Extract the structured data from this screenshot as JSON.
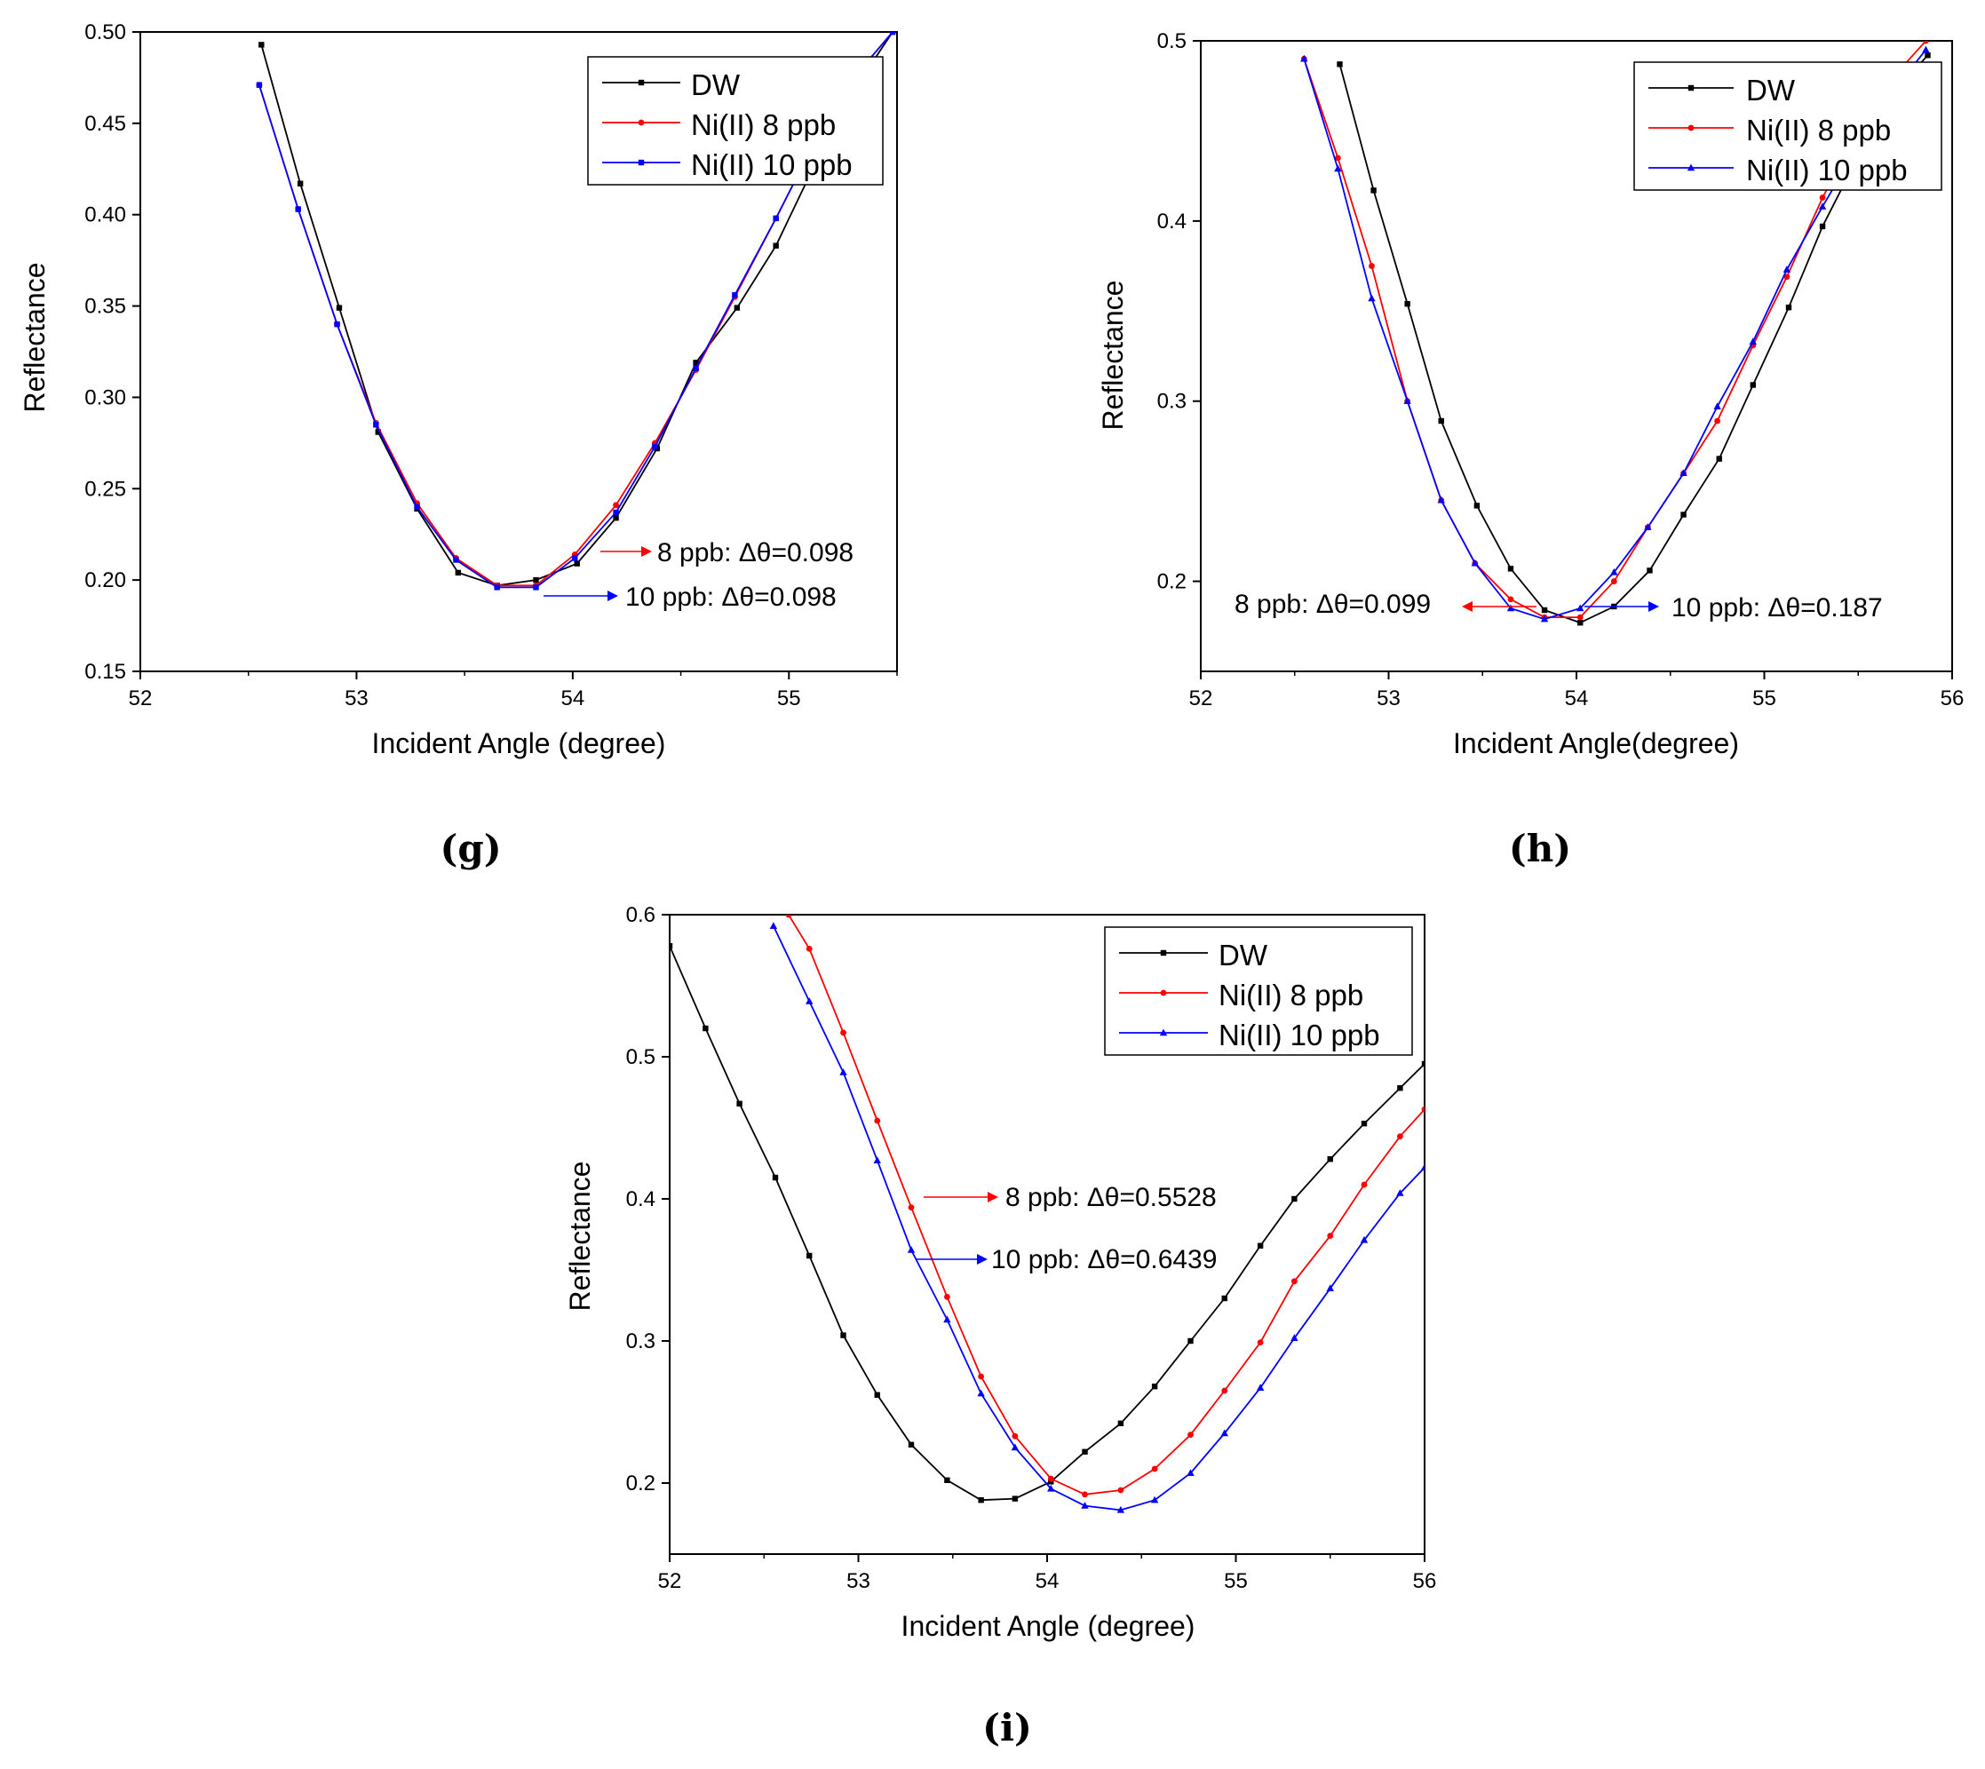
{
  "chart_data": [
    {
      "type": "line",
      "panel_label": "g",
      "xlabel": "Incident Angle (degree)",
      "ylabel": "Reflectance",
      "xlim": [
        52,
        55.5
      ],
      "ylim": [
        0.15,
        0.5
      ],
      "xticks": [
        "52",
        "53",
        "54",
        "55"
      ],
      "yticks": [
        "0.15",
        "0.20",
        "0.25",
        "0.30",
        "0.35",
        "0.40",
        "0.45",
        "0.50"
      ],
      "legend": [
        "DW",
        "Ni(II) 8 ppb",
        "Ni(II) 10 ppb"
      ],
      "series": [
        {
          "name": "DW",
          "color": "#000000",
          "marker": "square",
          "x": [
            52.56,
            52.74,
            52.92,
            53.1,
            53.28,
            53.47,
            53.65,
            53.83,
            54.02,
            54.2,
            54.39,
            54.57,
            54.76,
            54.94,
            55.13,
            55.31,
            55.48
          ],
          "y": [
            0.493,
            0.417,
            0.349,
            0.281,
            0.239,
            0.204,
            0.197,
            0.2,
            0.209,
            0.234,
            0.272,
            0.319,
            0.349,
            0.383,
            0.43,
            0.47,
            0.5
          ]
        },
        {
          "name": "Ni(II) 8 ppb",
          "color": "#ff0000",
          "marker": "circle",
          "x": [
            52.55,
            52.73,
            52.91,
            53.09,
            53.28,
            53.46,
            53.65,
            53.83,
            54.01,
            54.2,
            54.38,
            54.57,
            54.75,
            54.94,
            55.12,
            55.3,
            55.48
          ],
          "y": [
            0.471,
            0.403,
            0.34,
            0.286,
            0.242,
            0.212,
            0.197,
            0.197,
            0.214,
            0.241,
            0.275,
            0.315,
            0.355,
            0.398,
            0.44,
            0.475,
            0.5
          ]
        },
        {
          "name": "Ni(II) 10 ppb",
          "color": "#0000ff",
          "marker": "square",
          "x": [
            52.55,
            52.73,
            52.91,
            53.09,
            53.28,
            53.46,
            53.65,
            53.83,
            54.01,
            54.2,
            54.38,
            54.57,
            54.75,
            54.94,
            55.12,
            55.3,
            55.48
          ],
          "y": [
            0.471,
            0.403,
            0.34,
            0.285,
            0.24,
            0.211,
            0.196,
            0.196,
            0.212,
            0.237,
            0.273,
            0.316,
            0.356,
            0.398,
            0.44,
            0.475,
            0.5
          ]
        }
      ],
      "annotations": [
        {
          "text": "8 ppb: Δθ=0.098",
          "color": "#ff0000",
          "arrow": "right"
        },
        {
          "text": "10 ppb: Δθ=0.098",
          "color": "#0000ff",
          "arrow": "right"
        }
      ]
    },
    {
      "type": "line",
      "panel_label": "h",
      "xlabel": "Incident Angle(degree)",
      "ylabel": "Reflectance",
      "xlim": [
        52,
        56
      ],
      "ylim": [
        0.15,
        0.5
      ],
      "xticks": [
        "52",
        "53",
        "54",
        "55",
        "56"
      ],
      "yticks": [
        "0.2",
        "0.3",
        "0.4",
        "0.5"
      ],
      "legend": [
        "DW",
        "Ni(II) 8 ppb",
        "Ni(II) 10 ppb"
      ],
      "series": [
        {
          "name": "DW",
          "color": "#000000",
          "marker": "square",
          "x": [
            52.74,
            52.92,
            53.1,
            53.28,
            53.47,
            53.65,
            53.83,
            54.02,
            54.2,
            54.39,
            54.57,
            54.76,
            54.94,
            55.13,
            55.31,
            55.5,
            55.68,
            55.87
          ],
          "y": [
            0.487,
            0.417,
            0.354,
            0.289,
            0.242,
            0.207,
            0.184,
            0.177,
            0.186,
            0.206,
            0.237,
            0.268,
            0.309,
            0.352,
            0.397,
            0.436,
            0.47,
            0.492
          ]
        },
        {
          "name": "Ni(II) 8 ppb",
          "color": "#ff0000",
          "marker": "circle",
          "x": [
            52.55,
            52.73,
            52.91,
            53.1,
            53.28,
            53.46,
            53.65,
            53.83,
            54.02,
            54.2,
            54.38,
            54.57,
            54.75,
            54.94,
            55.12,
            55.31,
            55.49,
            55.67,
            55.86
          ],
          "y": [
            0.49,
            0.435,
            0.375,
            0.3,
            0.245,
            0.21,
            0.19,
            0.18,
            0.18,
            0.2,
            0.23,
            0.26,
            0.289,
            0.331,
            0.369,
            0.413,
            0.448,
            0.478,
            0.5
          ]
        },
        {
          "name": "Ni(II) 10 ppb",
          "color": "#0000ff",
          "marker": "triangle",
          "x": [
            52.55,
            52.73,
            52.91,
            53.1,
            53.28,
            53.46,
            53.65,
            53.83,
            54.02,
            54.2,
            54.38,
            54.57,
            54.75,
            54.94,
            55.12,
            55.31,
            55.49,
            55.67,
            55.86
          ],
          "y": [
            0.49,
            0.429,
            0.357,
            0.3,
            0.245,
            0.21,
            0.185,
            0.179,
            0.185,
            0.205,
            0.23,
            0.26,
            0.297,
            0.333,
            0.373,
            0.408,
            0.44,
            0.47,
            0.495
          ]
        }
      ],
      "annotations": [
        {
          "text": "8 ppb: Δθ=0.099",
          "color": "#ff0000",
          "arrow": "left"
        },
        {
          "text": "10 ppb: Δθ=0.187",
          "color": "#0000ff",
          "arrow": "right"
        }
      ]
    },
    {
      "type": "line",
      "panel_label": "i",
      "xlabel": "Incident Angle (degree)",
      "ylabel": "Reflectance",
      "xlim": [
        52,
        56
      ],
      "ylim": [
        0.15,
        0.6
      ],
      "xticks": [
        "52",
        "53",
        "54",
        "55",
        "56"
      ],
      "yticks": [
        "0.2",
        "0.3",
        "0.4",
        "0.5",
        "0.6"
      ],
      "legend": [
        "DW",
        "Ni(II) 8 ppb",
        "Ni(II) 10 ppb"
      ],
      "series": [
        {
          "name": "DW",
          "color": "#000000",
          "marker": "square",
          "x": [
            52.0,
            52.19,
            52.37,
            52.56,
            52.74,
            52.92,
            53.1,
            53.28,
            53.47,
            53.65,
            53.83,
            54.02,
            54.2,
            54.39,
            54.57,
            54.76,
            54.94,
            55.13,
            55.31,
            55.5,
            55.68,
            55.87,
            56.0
          ],
          "y": [
            0.578,
            0.52,
            0.467,
            0.415,
            0.36,
            0.304,
            0.262,
            0.227,
            0.202,
            0.188,
            0.189,
            0.201,
            0.222,
            0.242,
            0.268,
            0.3,
            0.33,
            0.367,
            0.4,
            0.428,
            0.453,
            0.478,
            0.495
          ]
        },
        {
          "name": "Ni(II) 8 ppb",
          "color": "#ff0000",
          "marker": "circle",
          "x": [
            52.63,
            52.74,
            52.92,
            53.1,
            53.28,
            53.47,
            53.65,
            53.83,
            54.02,
            54.2,
            54.39,
            54.57,
            54.76,
            54.94,
            55.13,
            55.31,
            55.5,
            55.68,
            55.87,
            56.0
          ],
          "y": [
            0.6,
            0.576,
            0.517,
            0.455,
            0.394,
            0.331,
            0.275,
            0.233,
            0.203,
            0.192,
            0.195,
            0.21,
            0.234,
            0.265,
            0.299,
            0.342,
            0.374,
            0.41,
            0.444,
            0.463
          ]
        },
        {
          "name": "Ni(II) 10 ppb",
          "color": "#0000ff",
          "marker": "triangle",
          "x": [
            52.55,
            52.74,
            52.92,
            53.1,
            53.28,
            53.47,
            53.65,
            53.83,
            54.02,
            54.2,
            54.39,
            54.57,
            54.76,
            54.94,
            55.13,
            55.31,
            55.5,
            55.68,
            55.87,
            56.0
          ],
          "y": [
            0.592,
            0.539,
            0.489,
            0.427,
            0.364,
            0.315,
            0.263,
            0.225,
            0.196,
            0.184,
            0.181,
            0.188,
            0.207,
            0.235,
            0.267,
            0.302,
            0.337,
            0.371,
            0.404,
            0.422
          ]
        }
      ],
      "annotations": [
        {
          "text": "8 ppb: Δθ=0.5528",
          "color": "#ff0000",
          "arrow": "right"
        },
        {
          "text": "10 ppb: Δθ=0.6439",
          "color": "#0000ff",
          "arrow": "right"
        }
      ]
    }
  ]
}
